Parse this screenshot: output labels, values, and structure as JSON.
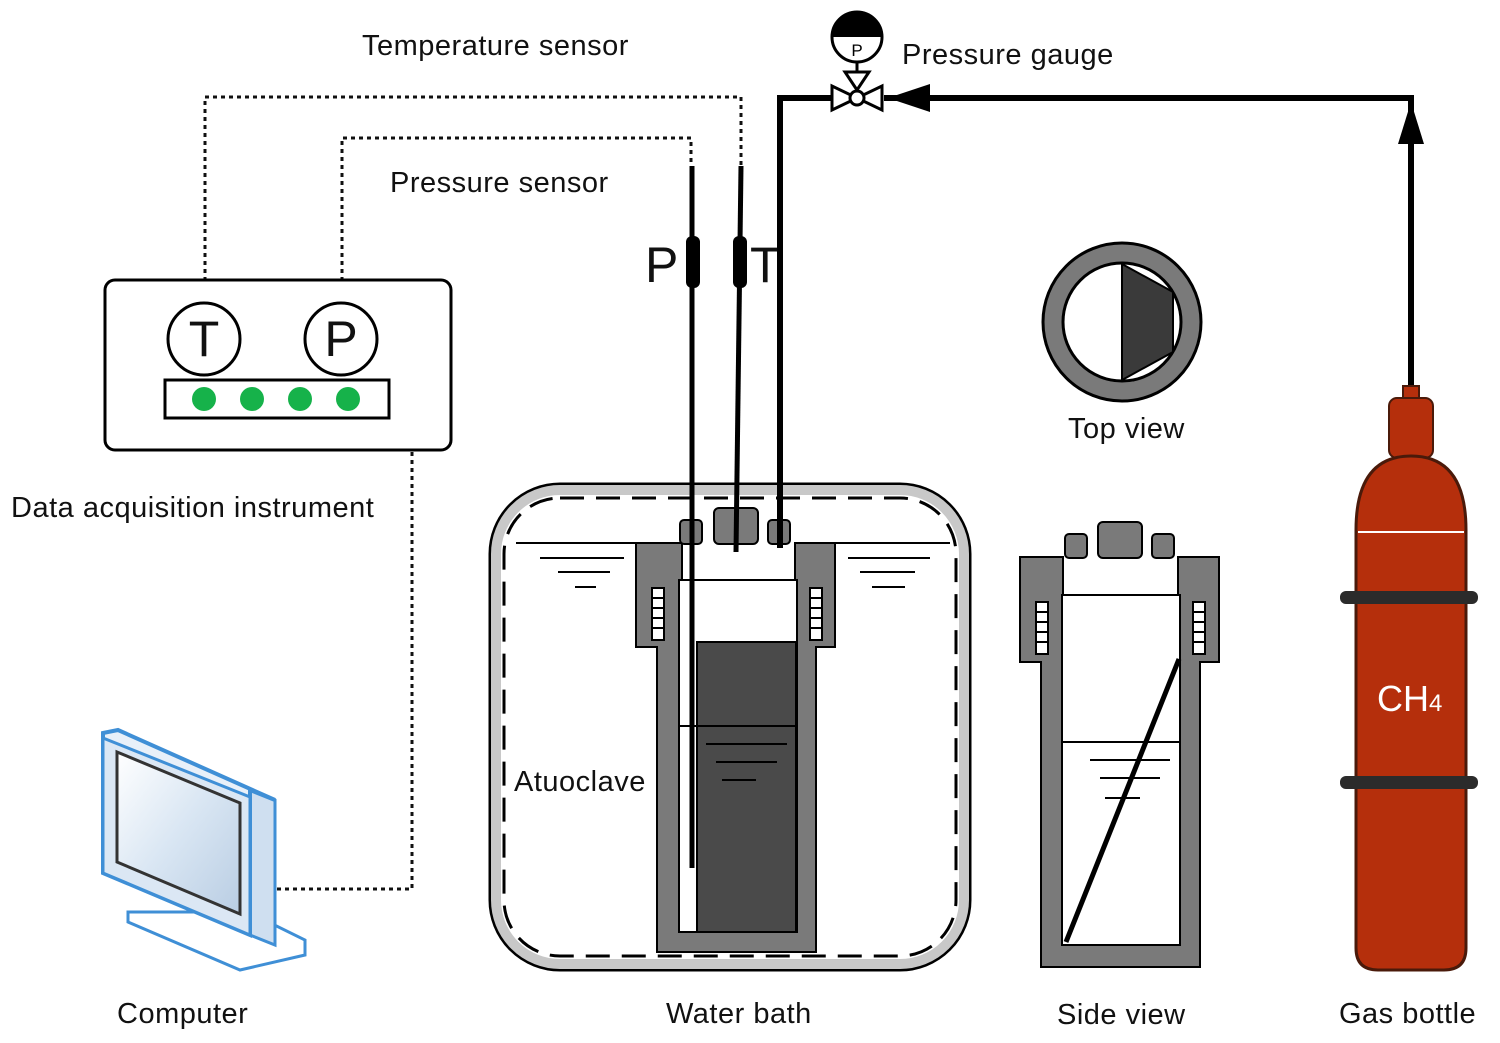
{
  "labels": {
    "temperature_sensor": "Temperature sensor",
    "pressure_sensor": "Pressure sensor",
    "pressure_gauge": "Pressure gauge",
    "data_acquisition": "Data acquisition instrument",
    "computer": "Computer",
    "water_bath": "Water bath",
    "autoclave": "Atuoclave",
    "top_view": "Top view",
    "side_view": "Side view",
    "gas_bottle": "Gas bottle"
  },
  "instrument": {
    "t_dial": "T",
    "p_dial": "P",
    "indicator_count": 4
  },
  "probes": {
    "p_tag": "P",
    "t_tag": "T"
  },
  "gauge_symbol": "P",
  "gas": {
    "formula_main": "CH",
    "formula_sub": "4"
  },
  "colors": {
    "cylinder": "#b52f0c",
    "cylinder_edge": "#4a1a0a",
    "vessel_wall": "#7a7a7a",
    "sediment": "#4a4a4a",
    "bath_rim": "#c8c8c8",
    "indicator": "#16b24a",
    "monitor_frame": "#3f8fd6"
  }
}
